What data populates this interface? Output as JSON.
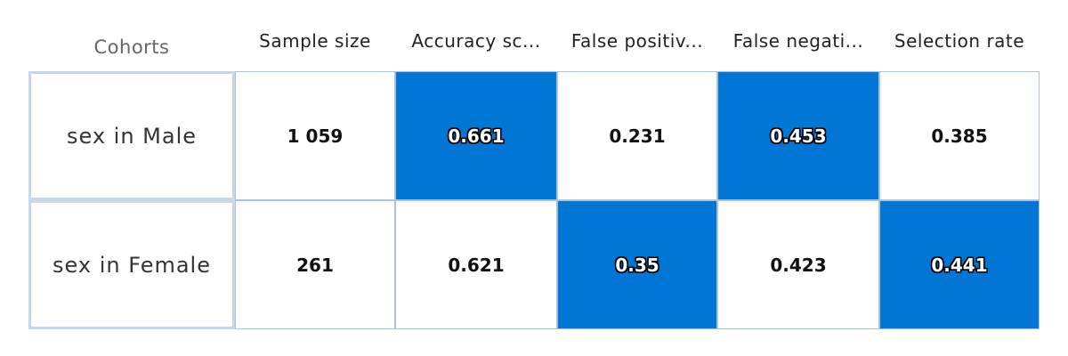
{
  "chart_data": {
    "type": "table",
    "row_header_label": "Cohorts",
    "columns": [
      "Sample size",
      "Accuracy sc...",
      "False positiv...",
      "False negati...",
      "Selection rate"
    ],
    "rows": [
      {
        "label": "sex in Male",
        "values": [
          "1 059",
          "0.661",
          "0.231",
          "0.453",
          "0.385"
        ],
        "highlighted": [
          false,
          true,
          false,
          true,
          false
        ]
      },
      {
        "label": "sex in Female",
        "values": [
          "261",
          "0.621",
          "0.35",
          "0.423",
          "0.441"
        ],
        "highlighted": [
          false,
          false,
          true,
          false,
          true
        ]
      }
    ],
    "highlight_color": "#0276d4"
  }
}
